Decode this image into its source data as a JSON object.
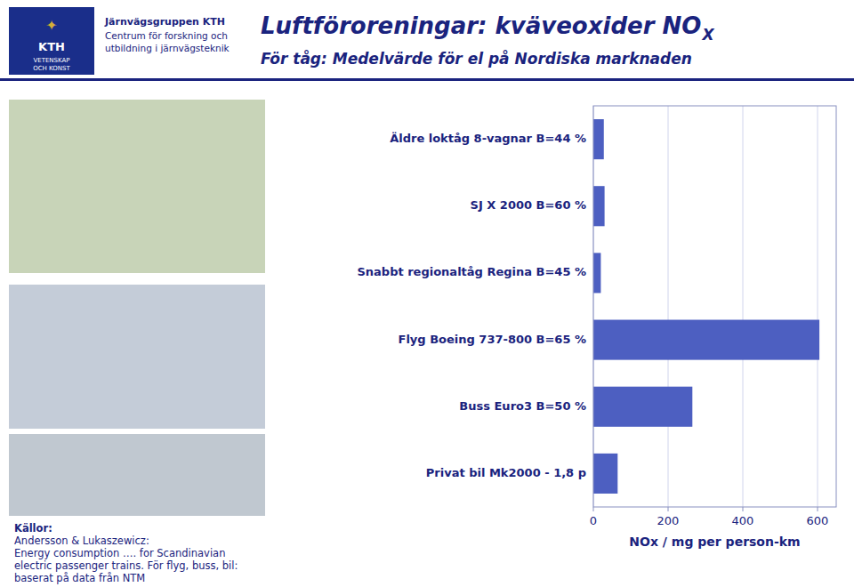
{
  "chart_data": {
    "type": "bar",
    "orientation": "horizontal",
    "title": "Luftföroreningar: kväveoxider NO",
    "subtitle": "För tåg:  Medelvärde för el på Nordiska marknaden",
    "annotations": [
      "X",
      "Järnvägsgruppen KTH",
      "Centrum för forskning och",
      "utbildning i järnvägsteknik",
      "✦",
      "KTH",
      "VETENSKAP",
      "OCH KONST",
      "Källor:",
      "Andersson & Lukaszewicz:",
      "Energy consumption …. for Scandinavian",
      "electric passenger trains. För flyg, buss, bil:",
      "baserat på data från NTM"
    ],
    "categories": [
      "Privat bil Mk2000 - 1,8 p",
      "Buss Euro3   B=50 %",
      "Flyg Boeing 737-800  B=65 %",
      "Snabbt regionaltåg Regina B=45 %",
      "SJ X 2000  B=60 %",
      "Äldre loktåg 8-vagnar B=44 %"
    ],
    "values": [
      65,
      265,
      605,
      20,
      30,
      28
    ],
    "color": "#4d5fc1",
    "xlabel": "NOx / mg per person-km",
    "xlim": [
      0,
      650
    ],
    "xticks": [
      0,
      200,
      400,
      600
    ],
    "grid": true
  }
}
